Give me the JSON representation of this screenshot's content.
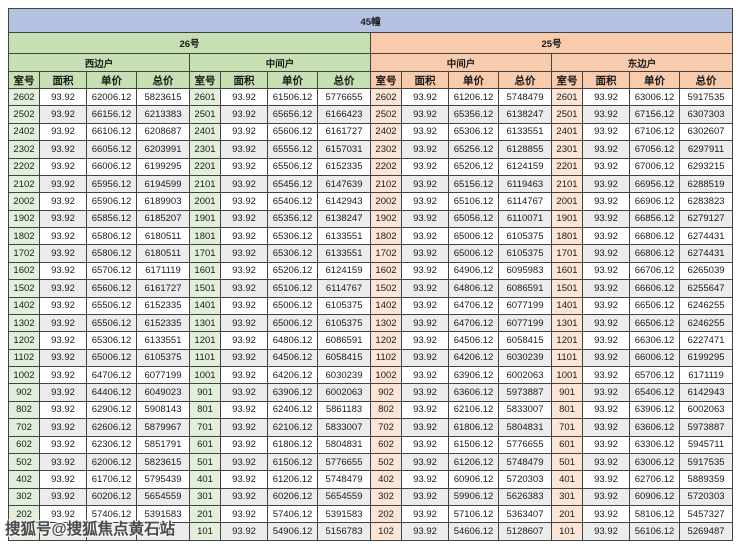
{
  "title": "45幢",
  "colors": {
    "title-band": "#b6c2e2",
    "green": "#c6e0b4",
    "green-light": "#e2efda",
    "orange": "#f8cbad",
    "orange-light": "#fbe5d6",
    "stripe": "#ececec",
    "border": "#424242",
    "text": "#1a1a1a",
    "watermark": "#4a4a4a"
  },
  "watermark": {
    "text": "搜狐号@搜狐焦点黄石站"
  },
  "table": {
    "title": "45幢",
    "sections": [
      {
        "label": "26号",
        "color": "#c6e0b4"
      },
      {
        "label": "25号",
        "color": "#f8cbad"
      }
    ],
    "columns": [
      "室号",
      "面积",
      "单价",
      "总价"
    ],
    "groups": [
      {
        "building": "26号",
        "unit": "西边户",
        "side": "green",
        "rows": [
          [
            "2602",
            "93.92",
            "62006.12",
            "5823615"
          ],
          [
            "2502",
            "93.92",
            "66156.12",
            "6213383"
          ],
          [
            "2402",
            "93.92",
            "66106.12",
            "6208687"
          ],
          [
            "2302",
            "93.92",
            "66056.12",
            "6203991"
          ],
          [
            "2202",
            "93.92",
            "66006.12",
            "6199295"
          ],
          [
            "2102",
            "93.92",
            "65956.12",
            "6194599"
          ],
          [
            "2002",
            "93.92",
            "65906.12",
            "6189903"
          ],
          [
            "1902",
            "93.92",
            "65856.12",
            "6185207"
          ],
          [
            "1802",
            "93.92",
            "65806.12",
            "6180511"
          ],
          [
            "1702",
            "93.92",
            "65806.12",
            "6180511"
          ],
          [
            "1602",
            "93.92",
            "65706.12",
            "6171119"
          ],
          [
            "1502",
            "93.92",
            "65606.12",
            "6161727"
          ],
          [
            "1402",
            "93.92",
            "65506.12",
            "6152335"
          ],
          [
            "1302",
            "93.92",
            "65506.12",
            "6152335"
          ],
          [
            "1202",
            "93.92",
            "65306.12",
            "6133551"
          ],
          [
            "1102",
            "93.92",
            "65006.12",
            "6105375"
          ],
          [
            "1002",
            "93.92",
            "64706.12",
            "6077199"
          ],
          [
            "902",
            "93.92",
            "64406.12",
            "6049023"
          ],
          [
            "802",
            "93.92",
            "62906.12",
            "5908143"
          ],
          [
            "702",
            "93.92",
            "62606.12",
            "5879967"
          ],
          [
            "602",
            "93.92",
            "62306.12",
            "5851791"
          ],
          [
            "502",
            "93.92",
            "62006.12",
            "5823615"
          ],
          [
            "402",
            "93.92",
            "61706.12",
            "5795439"
          ],
          [
            "302",
            "93.92",
            "60206.12",
            "5654559"
          ],
          [
            "202",
            "93.92",
            "57406.12",
            "5391583"
          ],
          [
            "",
            "",
            "",
            "743"
          ]
        ]
      },
      {
        "building": "26号",
        "unit": "中间户",
        "side": "green",
        "rows": [
          [
            "2601",
            "93.92",
            "61506.12",
            "5776655"
          ],
          [
            "2501",
            "93.92",
            "65656.12",
            "6166423"
          ],
          [
            "2401",
            "93.92",
            "65606.12",
            "6161727"
          ],
          [
            "2301",
            "93.92",
            "65556.12",
            "6157031"
          ],
          [
            "2201",
            "93.92",
            "65506.12",
            "6152335"
          ],
          [
            "2101",
            "93.92",
            "65456.12",
            "6147639"
          ],
          [
            "2001",
            "93.92",
            "65406.12",
            "6142943"
          ],
          [
            "1901",
            "93.92",
            "65356.12",
            "6138247"
          ],
          [
            "1801",
            "93.92",
            "65306.12",
            "6133551"
          ],
          [
            "1701",
            "93.92",
            "65306.12",
            "6133551"
          ],
          [
            "1601",
            "93.92",
            "65206.12",
            "6124159"
          ],
          [
            "1501",
            "93.92",
            "65106.12",
            "6114767"
          ],
          [
            "1401",
            "93.92",
            "65006.12",
            "6105375"
          ],
          [
            "1301",
            "93.92",
            "65006.12",
            "6105375"
          ],
          [
            "1201",
            "93.92",
            "64806.12",
            "6086591"
          ],
          [
            "1101",
            "93.92",
            "64506.12",
            "6058415"
          ],
          [
            "1001",
            "93.92",
            "64206.12",
            "6030239"
          ],
          [
            "901",
            "93.92",
            "63906.12",
            "6002063"
          ],
          [
            "801",
            "93.92",
            "62406.12",
            "5861183"
          ],
          [
            "701",
            "93.92",
            "62106.12",
            "5833007"
          ],
          [
            "601",
            "93.92",
            "61806.12",
            "5804831"
          ],
          [
            "501",
            "93.92",
            "61506.12",
            "5776655"
          ],
          [
            "401",
            "93.92",
            "61206.12",
            "5748479"
          ],
          [
            "301",
            "93.92",
            "60206.12",
            "5654559"
          ],
          [
            "201",
            "93.92",
            "57406.12",
            "5391583"
          ],
          [
            "101",
            "93.92",
            "54906.12",
            "5156783"
          ]
        ]
      },
      {
        "building": "25号",
        "unit": "中间户",
        "side": "orange",
        "rows": [
          [
            "2602",
            "93.92",
            "61206.12",
            "5748479"
          ],
          [
            "2502",
            "93.92",
            "65356.12",
            "6138247"
          ],
          [
            "2402",
            "93.92",
            "65306.12",
            "6133551"
          ],
          [
            "2302",
            "93.92",
            "65256.12",
            "6128855"
          ],
          [
            "2202",
            "93.92",
            "65206.12",
            "6124159"
          ],
          [
            "2102",
            "93.92",
            "65156.12",
            "6119463"
          ],
          [
            "2002",
            "93.92",
            "65106.12",
            "6114767"
          ],
          [
            "1902",
            "93.92",
            "65056.12",
            "6110071"
          ],
          [
            "1802",
            "93.92",
            "65006.12",
            "6105375"
          ],
          [
            "1702",
            "93.92",
            "65006.12",
            "6105375"
          ],
          [
            "1602",
            "93.92",
            "64906.12",
            "6095983"
          ],
          [
            "1502",
            "93.92",
            "64806.12",
            "6086591"
          ],
          [
            "1402",
            "93.92",
            "64706.12",
            "6077199"
          ],
          [
            "1302",
            "93.92",
            "64706.12",
            "6077199"
          ],
          [
            "1202",
            "93.92",
            "64506.12",
            "6058415"
          ],
          [
            "1102",
            "93.92",
            "64206.12",
            "6030239"
          ],
          [
            "1002",
            "93.92",
            "63906.12",
            "6002063"
          ],
          [
            "902",
            "93.92",
            "63606.12",
            "5973887"
          ],
          [
            "802",
            "93.92",
            "62106.12",
            "5833007"
          ],
          [
            "702",
            "93.92",
            "61806.12",
            "5804831"
          ],
          [
            "602",
            "93.92",
            "61506.12",
            "5776655"
          ],
          [
            "502",
            "93.92",
            "61206.12",
            "5748479"
          ],
          [
            "402",
            "93.92",
            "60906.12",
            "5720303"
          ],
          [
            "302",
            "93.92",
            "59906.12",
            "5626383"
          ],
          [
            "202",
            "93.92",
            "57106.12",
            "5363407"
          ],
          [
            "102",
            "93.92",
            "54606.12",
            "5128607"
          ]
        ]
      },
      {
        "building": "25号",
        "unit": "东边户",
        "side": "orange",
        "rows": [
          [
            "2601",
            "93.92",
            "63006.12",
            "5917535"
          ],
          [
            "2501",
            "93.92",
            "67156.12",
            "6307303"
          ],
          [
            "2401",
            "93.92",
            "67106.12",
            "6302607"
          ],
          [
            "2301",
            "93.92",
            "67056.12",
            "6297911"
          ],
          [
            "2201",
            "93.92",
            "67006.12",
            "6293215"
          ],
          [
            "2101",
            "93.92",
            "66956.12",
            "6288519"
          ],
          [
            "2001",
            "93.92",
            "66906.12",
            "6283823"
          ],
          [
            "1901",
            "93.92",
            "66856.12",
            "6279127"
          ],
          [
            "1801",
            "93.92",
            "66806.12",
            "6274431"
          ],
          [
            "1701",
            "93.92",
            "66806.12",
            "6274431"
          ],
          [
            "1601",
            "93.92",
            "66706.12",
            "6265039"
          ],
          [
            "1501",
            "93.92",
            "66606.12",
            "6255647"
          ],
          [
            "1401",
            "93.92",
            "66506.12",
            "6246255"
          ],
          [
            "1301",
            "93.92",
            "66506.12",
            "6246255"
          ],
          [
            "1201",
            "93.92",
            "66306.12",
            "6227471"
          ],
          [
            "1101",
            "93.92",
            "66006.12",
            "6199295"
          ],
          [
            "1001",
            "93.92",
            "65706.12",
            "6171119"
          ],
          [
            "901",
            "93.92",
            "65406.12",
            "6142943"
          ],
          [
            "801",
            "93.92",
            "63906.12",
            "6002063"
          ],
          [
            "701",
            "93.92",
            "63606.12",
            "5973887"
          ],
          [
            "601",
            "93.92",
            "63306.12",
            "5945711"
          ],
          [
            "501",
            "93.92",
            "63006.12",
            "5917535"
          ],
          [
            "401",
            "93.92",
            "62706.12",
            "5889359"
          ],
          [
            "301",
            "93.92",
            "60906.12",
            "5720303"
          ],
          [
            "201",
            "93.92",
            "58106.12",
            "5457327"
          ],
          [
            "101",
            "93.92",
            "56106.12",
            "5269487"
          ]
        ]
      }
    ]
  }
}
